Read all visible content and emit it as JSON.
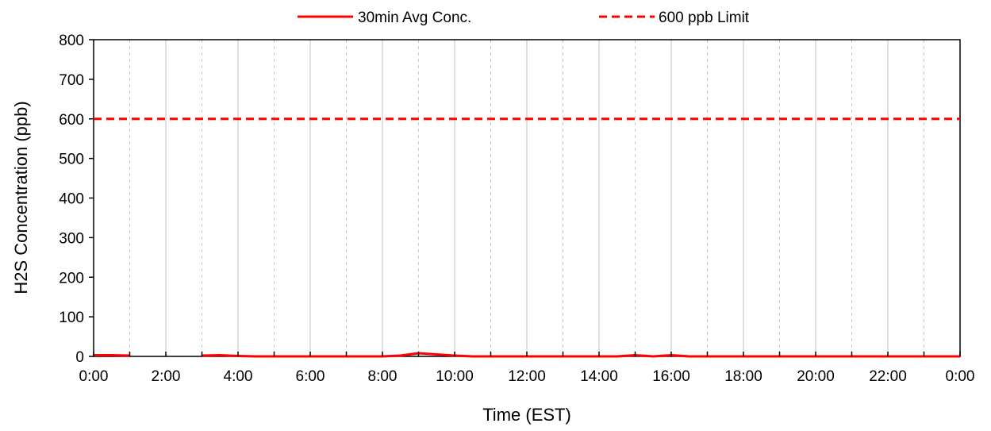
{
  "chart_data": {
    "type": "line",
    "xlabel": "Time (EST)",
    "ylabel": "H2S Concentration (ppb)",
    "ylim": [
      0,
      800
    ],
    "yticks": [
      0,
      100,
      200,
      300,
      400,
      500,
      600,
      700,
      800
    ],
    "xlim_hours": [
      0,
      24
    ],
    "xtick_labels": [
      "0:00",
      "2:00",
      "4:00",
      "6:00",
      "8:00",
      "10:00",
      "12:00",
      "14:00",
      "16:00",
      "18:00",
      "20:00",
      "22:00",
      "0:00"
    ],
    "grid": "vertical",
    "legend_position": "top-center",
    "series": [
      {
        "name": "30min Avg Conc.",
        "color": "#ff0000",
        "style": "solid",
        "x_hours": [
          0,
          0.5,
          1.0,
          2.5,
          3.0,
          3.5,
          4.0,
          4.5,
          5.0,
          5.5,
          6.0,
          6.5,
          7.0,
          7.5,
          8.0,
          8.5,
          9.0,
          9.5,
          10.0,
          10.5,
          11.0,
          11.5,
          12.0,
          12.5,
          13.0,
          13.5,
          14.0,
          14.5,
          15.0,
          15.5,
          16.0,
          16.5,
          17.0,
          17.5,
          18.0,
          18.5,
          19.0,
          19.5,
          20.0,
          20.5,
          21.0,
          21.5,
          22.0,
          22.5,
          23.0,
          23.5,
          24.0
        ],
        "values": [
          3,
          3,
          2,
          null,
          2,
          3,
          1,
          0,
          0,
          0,
          0,
          0,
          0,
          0,
          0,
          2,
          8,
          5,
          2,
          0,
          0,
          0,
          0,
          0,
          0,
          0,
          0,
          0,
          3,
          0,
          3,
          0,
          0,
          0,
          0,
          0,
          0,
          0,
          0,
          0,
          0,
          0,
          0,
          0,
          0,
          0,
          0
        ]
      },
      {
        "name": "600 ppb Limit",
        "color": "#ff0000",
        "style": "dashed",
        "x_hours": [
          0,
          24
        ],
        "values": [
          600,
          600
        ]
      }
    ]
  }
}
